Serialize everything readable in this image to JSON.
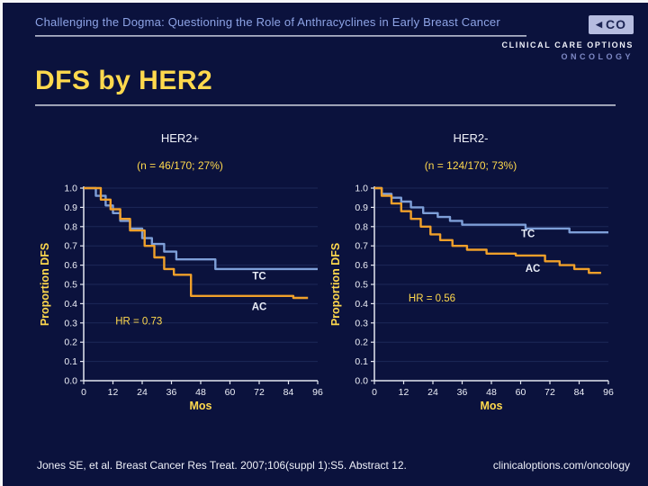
{
  "header": {
    "deck_title": "Challenging the Dogma: Questioning the Role of Anthracyclines in Early Breast Cancer",
    "logo": {
      "mark": "CO",
      "triangle": "left-triangle-icon",
      "line1": "CLINICAL CARE OPTIONS",
      "line2": "ONCOLOGY"
    }
  },
  "slide": {
    "title": "DFS by HER2"
  },
  "footer": {
    "citation": "Jones SE, et al. Breast Cancer Res Treat. 2007;106(suppl 1):S5. Abstract 12.",
    "site": "clinicaloptions.com/oncology"
  },
  "colors": {
    "background": "#0b123d",
    "accent_yellow": "#ffd94d",
    "header_blue": "#8ea4e6",
    "curve_tc": "#7e9fd8",
    "curve_ac": "#f0a02a",
    "axis": "#e4e7f2",
    "gridline": "#1d2858",
    "tick_text": "#eef0f8"
  },
  "chart_data": [
    {
      "type": "line",
      "panel": "HER2+",
      "subtitle": "(n = 46/170; 27%)",
      "xlabel": "Mos",
      "ylabel": "Proportion DFS",
      "xlim": [
        0,
        96
      ],
      "ylim": [
        0,
        1.0
      ],
      "xticks": [
        0,
        12,
        24,
        36,
        48,
        60,
        72,
        84,
        96
      ],
      "yticks": [
        0,
        0.1,
        0.2,
        0.3,
        0.4,
        0.5,
        0.6,
        0.7,
        0.8,
        0.9,
        1.0
      ],
      "grid": true,
      "series": [
        {
          "name": "TC",
          "color": "#7e9fd8",
          "steps": [
            [
              0,
              1.0
            ],
            [
              5,
              1.0
            ],
            [
              5,
              0.96
            ],
            [
              9,
              0.96
            ],
            [
              9,
              0.91
            ],
            [
              12,
              0.91
            ],
            [
              12,
              0.87
            ],
            [
              15,
              0.87
            ],
            [
              15,
              0.83
            ],
            [
              19,
              0.83
            ],
            [
              19,
              0.79
            ],
            [
              24,
              0.79
            ],
            [
              24,
              0.74
            ],
            [
              28,
              0.74
            ],
            [
              28,
              0.71
            ],
            [
              33,
              0.71
            ],
            [
              33,
              0.67
            ],
            [
              38,
              0.67
            ],
            [
              38,
              0.63
            ],
            [
              54,
              0.63
            ],
            [
              54,
              0.58
            ],
            [
              96,
              0.58
            ]
          ]
        },
        {
          "name": "AC",
          "color": "#f0a02a",
          "steps": [
            [
              0,
              1.0
            ],
            [
              7,
              1.0
            ],
            [
              7,
              0.94
            ],
            [
              11,
              0.94
            ],
            [
              11,
              0.89
            ],
            [
              15,
              0.89
            ],
            [
              15,
              0.84
            ],
            [
              19,
              0.84
            ],
            [
              19,
              0.78
            ],
            [
              25,
              0.78
            ],
            [
              25,
              0.7
            ],
            [
              29,
              0.7
            ],
            [
              29,
              0.64
            ],
            [
              33,
              0.64
            ],
            [
              33,
              0.58
            ],
            [
              37,
              0.58
            ],
            [
              37,
              0.55
            ],
            [
              44,
              0.55
            ],
            [
              44,
              0.44
            ],
            [
              86,
              0.44
            ],
            [
              86,
              0.43
            ],
            [
              92,
              0.43
            ]
          ]
        }
      ],
      "annotations": [
        {
          "text": "TC",
          "x": 72,
          "y": 0.545,
          "color": "#e9edf7",
          "bold": true
        },
        {
          "text": "AC",
          "x": 72,
          "y": 0.385,
          "color": "#e9edf7",
          "bold": true
        },
        {
          "text": "HR = 0.73",
          "x": 13,
          "y": 0.31,
          "color": "#ffd94d",
          "anchor": "start"
        }
      ]
    },
    {
      "type": "line",
      "panel": "HER2-",
      "subtitle": "(n = 124/170; 73%)",
      "xlabel": "Mos",
      "ylabel": "Proportion DFS",
      "xlim": [
        0,
        96
      ],
      "ylim": [
        0,
        1.0
      ],
      "xticks": [
        0,
        12,
        24,
        36,
        48,
        60,
        72,
        84,
        96
      ],
      "yticks": [
        0,
        0.1,
        0.2,
        0.3,
        0.4,
        0.5,
        0.6,
        0.7,
        0.8,
        0.9,
        1.0
      ],
      "grid": true,
      "series": [
        {
          "name": "TC",
          "color": "#7e9fd8",
          "steps": [
            [
              0,
              1.0
            ],
            [
              3,
              1.0
            ],
            [
              3,
              0.97
            ],
            [
              7,
              0.97
            ],
            [
              7,
              0.95
            ],
            [
              11,
              0.95
            ],
            [
              11,
              0.93
            ],
            [
              15,
              0.93
            ],
            [
              15,
              0.9
            ],
            [
              20,
              0.9
            ],
            [
              20,
              0.87
            ],
            [
              26,
              0.87
            ],
            [
              26,
              0.85
            ],
            [
              31,
              0.85
            ],
            [
              31,
              0.83
            ],
            [
              36,
              0.83
            ],
            [
              36,
              0.81
            ],
            [
              62,
              0.81
            ],
            [
              62,
              0.79
            ],
            [
              80,
              0.79
            ],
            [
              80,
              0.77
            ],
            [
              96,
              0.77
            ]
          ]
        },
        {
          "name": "AC",
          "color": "#f0a02a",
          "steps": [
            [
              0,
              1.0
            ],
            [
              3,
              1.0
            ],
            [
              3,
              0.96
            ],
            [
              7,
              0.96
            ],
            [
              7,
              0.92
            ],
            [
              11,
              0.92
            ],
            [
              11,
              0.88
            ],
            [
              15,
              0.88
            ],
            [
              15,
              0.84
            ],
            [
              19,
              0.84
            ],
            [
              19,
              0.8
            ],
            [
              23,
              0.8
            ],
            [
              23,
              0.76
            ],
            [
              27,
              0.76
            ],
            [
              27,
              0.73
            ],
            [
              32,
              0.73
            ],
            [
              32,
              0.7
            ],
            [
              38,
              0.7
            ],
            [
              38,
              0.68
            ],
            [
              46,
              0.68
            ],
            [
              46,
              0.66
            ],
            [
              58,
              0.66
            ],
            [
              58,
              0.65
            ],
            [
              70,
              0.65
            ],
            [
              70,
              0.62
            ],
            [
              76,
              0.62
            ],
            [
              76,
              0.6
            ],
            [
              82,
              0.6
            ],
            [
              82,
              0.58
            ],
            [
              88,
              0.58
            ],
            [
              88,
              0.56
            ],
            [
              93,
              0.56
            ]
          ]
        }
      ],
      "annotations": [
        {
          "text": "TC",
          "x": 63,
          "y": 0.765,
          "color": "#e9edf7",
          "bold": true
        },
        {
          "text": "AC",
          "x": 65,
          "y": 0.585,
          "color": "#e9edf7",
          "bold": true
        },
        {
          "text": "HR = 0.56",
          "x": 14,
          "y": 0.43,
          "color": "#ffd94d",
          "anchor": "start"
        }
      ]
    }
  ]
}
